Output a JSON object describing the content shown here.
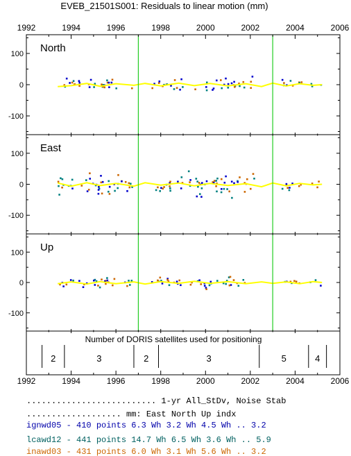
{
  "chart_data": {
    "type": "scatter",
    "title": "EVEB_21501S001: Residuals to linear motion (mm)",
    "xlim": [
      1992,
      2006
    ],
    "x_ticks": [
      "1992",
      "1994",
      "1996",
      "1998",
      "2000",
      "2002",
      "2004",
      "2006"
    ],
    "ylim": [
      -160,
      160
    ],
    "y_ticks": [
      "100",
      "0",
      "-100"
    ],
    "event_lines_year": [
      1997.0,
      2003.0
    ],
    "panels": [
      {
        "name": "North",
        "segments": [
          [
            1993.4,
            1996.8,
            24,
            8
          ],
          [
            1997.6,
            2002.2,
            26,
            8
          ],
          [
            2003.3,
            2004.3,
            20,
            8
          ],
          [
            2004.6,
            2005.2,
            26,
            4
          ]
        ],
        "trend": [
          [
            1993.4,
            -6
          ],
          [
            1994.0,
            -3
          ],
          [
            1994.7,
            4
          ],
          [
            1995.3,
            -5
          ],
          [
            1996.0,
            3
          ],
          [
            1996.8,
            -2
          ],
          [
            1997.3,
            4
          ],
          [
            1998.0,
            -4
          ],
          [
            1998.8,
            5
          ],
          [
            1999.5,
            -3
          ],
          [
            2000.2,
            4
          ],
          [
            2001.0,
            -4
          ],
          [
            2001.8,
            3
          ],
          [
            2002.5,
            -6
          ],
          [
            2003.0,
            5
          ],
          [
            2003.6,
            -4
          ],
          [
            2004.2,
            3
          ],
          [
            2004.8,
            -2
          ],
          [
            2005.2,
            0
          ]
        ]
      },
      {
        "name": "East",
        "segments": [
          [
            1993.4,
            1996.8,
            38,
            12
          ],
          [
            1997.6,
            2002.2,
            42,
            12
          ],
          [
            2003.3,
            2004.3,
            28,
            8
          ],
          [
            2004.6,
            2005.2,
            20,
            4
          ]
        ],
        "trend": [
          [
            1993.4,
            4
          ],
          [
            1994.0,
            -6
          ],
          [
            1994.7,
            5
          ],
          [
            1995.3,
            -4
          ],
          [
            1996.0,
            3
          ],
          [
            1996.8,
            -6
          ],
          [
            1997.3,
            5
          ],
          [
            1998.0,
            -3
          ],
          [
            1998.8,
            4
          ],
          [
            1999.5,
            -5
          ],
          [
            2000.2,
            3
          ],
          [
            2001.0,
            -4
          ],
          [
            2001.8,
            2
          ],
          [
            2002.5,
            -8
          ],
          [
            2003.0,
            4
          ],
          [
            2003.6,
            -5
          ],
          [
            2004.2,
            3
          ],
          [
            2004.8,
            -2
          ],
          [
            2005.2,
            0
          ]
        ]
      },
      {
        "name": "Up",
        "segments": [
          [
            1993.4,
            1996.8,
            24,
            8
          ],
          [
            1997.6,
            2002.2,
            24,
            8
          ],
          [
            2003.3,
            2004.3,
            14,
            6
          ],
          [
            2004.6,
            2005.2,
            22,
            4
          ]
        ],
        "trend": [
          [
            1993.4,
            -4
          ],
          [
            1994.0,
            2
          ],
          [
            1994.7,
            -5
          ],
          [
            1995.3,
            3
          ],
          [
            1996.0,
            -4
          ],
          [
            1996.8,
            2
          ],
          [
            1997.3,
            -5
          ],
          [
            1998.0,
            3
          ],
          [
            1998.8,
            -3
          ],
          [
            1999.5,
            4
          ],
          [
            2000.2,
            -3
          ],
          [
            2001.0,
            3
          ],
          [
            2001.8,
            -4
          ],
          [
            2002.5,
            2
          ],
          [
            2003.0,
            -3
          ],
          [
            2003.6,
            2
          ],
          [
            2004.2,
            -4
          ],
          [
            2004.8,
            3
          ],
          [
            2005.2,
            0
          ]
        ]
      }
    ],
    "satellites": {
      "label": "Number of DORIS satellites used for positioning",
      "dividers_year": [
        1992.7,
        1993.7,
        1996.8,
        1997.9,
        2002.4,
        2004.6,
        2005.4
      ],
      "counts": [
        "2",
        "3",
        "2",
        "3",
        "5",
        "4"
      ]
    }
  },
  "colors": {
    "axis": "#000000",
    "event_line": "#22cc22",
    "trend": "#ffff00",
    "series": [
      "#0000cc",
      "#008080",
      "#cc6600"
    ]
  },
  "stats": {
    "header": ".......................... 1-yr All_StDv, Noise      Stab",
    "subheader": "................... mm:   East   North    Up        indx",
    "rows": [
      {
        "text": "ignwd05 - 410 points    6.3 Wh  3.2 Wh  4.5 Wh ..  3.2",
        "color": "#0000aa"
      },
      {
        "text": "lcawd12 - 441 points   14.7 Wh  6.5 Wh  3.6 Wh ..  5.9",
        "color": "#006060"
      },
      {
        "text": "inawd03 - 431 points    6.0 Wh  3.1 Wh  5.6 Wh ..  3.2",
        "color": "#cc6600"
      }
    ]
  }
}
